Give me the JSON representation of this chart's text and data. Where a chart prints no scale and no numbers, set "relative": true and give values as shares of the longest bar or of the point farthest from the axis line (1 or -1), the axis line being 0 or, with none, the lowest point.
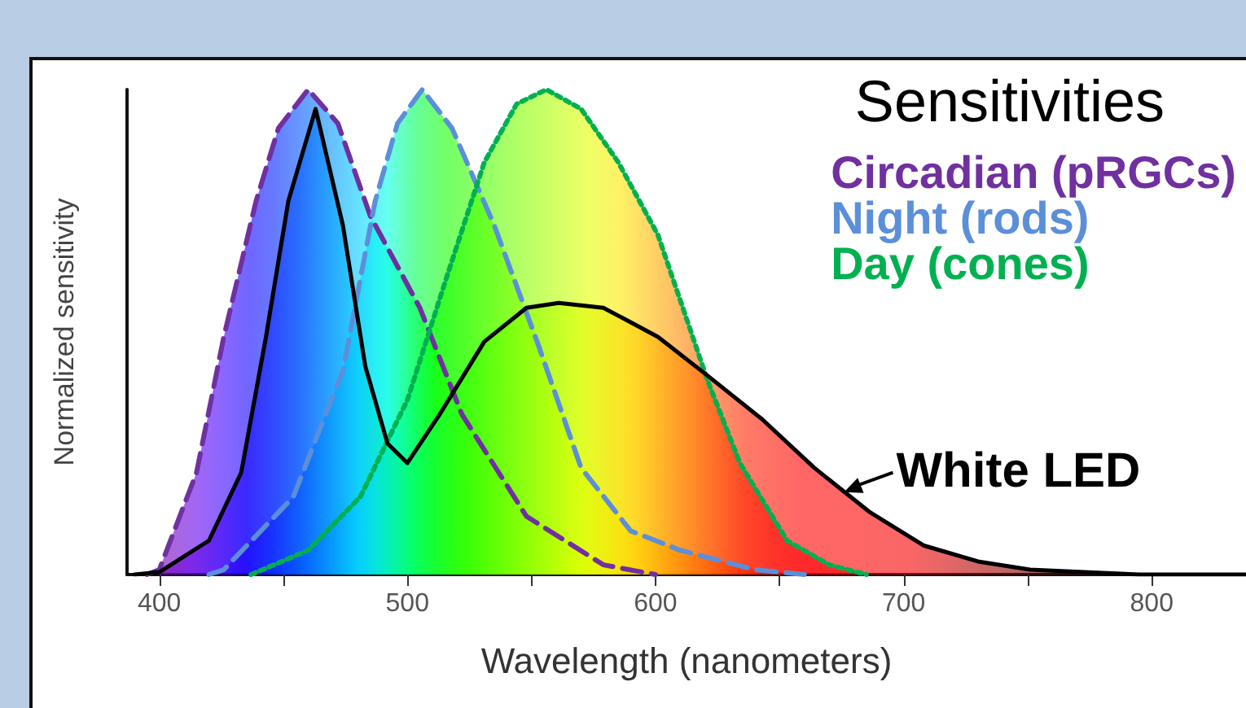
{
  "chart_data": {
    "type": "area",
    "relative": true,
    "xlabel": "Wavelength (nanometers)",
    "ylabel": "Normalized sensitivity",
    "legend_title": "Sensitivities",
    "legend": "top right",
    "grid": false,
    "marker": "none",
    "xlim": [
      387,
      838
    ],
    "xticks": [
      400,
      {
        "value": 450,
        "label": null
      },
      500,
      {
        "value": 550,
        "label": null
      },
      600,
      {
        "value": 650,
        "label": null
      },
      700,
      {
        "value": 750,
        "label": null
      },
      800
    ],
    "series": [
      {
        "name": "Circadian (pRGCs)",
        "color": "#7030a0",
        "line_style": "dashed",
        "x": [
          395,
          400,
          415,
          426,
          439,
          448,
          460,
          472,
          485,
          505,
          522,
          548,
          579,
          600
        ],
        "values": [
          0,
          0.01,
          0.21,
          0.49,
          0.77,
          0.92,
          1,
          0.93,
          0.74,
          0.55,
          0.33,
          0.12,
          0.02,
          0
        ]
      },
      {
        "name": "Night (rods)",
        "color": "#5b8fd9",
        "line_style": "dashed",
        "x": [
          420,
          426,
          454,
          474,
          487,
          496,
          506,
          518,
          535,
          553,
          570,
          590,
          610,
          640,
          660
        ],
        "values": [
          0,
          0.01,
          0.16,
          0.42,
          0.77,
          0.93,
          1,
          0.92,
          0.72,
          0.47,
          0.22,
          0.09,
          0.05,
          0.01,
          0
        ]
      },
      {
        "name": "Day (cones)",
        "color": "#00b050",
        "line_style": "dotted",
        "x": [
          437,
          460,
          481,
          500,
          515,
          531,
          544,
          556,
          570,
          585,
          601,
          621,
          634,
          653,
          670,
          685
        ],
        "values": [
          0,
          0.05,
          0.16,
          0.36,
          0.6,
          0.85,
          0.97,
          1,
          0.96,
          0.85,
          0.7,
          0.4,
          0.23,
          0.07,
          0.02,
          0
        ]
      },
      {
        "color": "#000000",
        "line_style": "solid",
        "x": [
          390,
          400,
          420,
          433,
          443,
          452,
          463,
          474,
          483,
          492,
          500,
          513,
          531,
          548,
          561,
          579,
          601,
          621,
          643,
          664,
          686,
          708,
          730,
          751,
          795,
          838
        ],
        "values": [
          0,
          0.005,
          0.07,
          0.21,
          0.49,
          0.77,
          0.96,
          0.72,
          0.43,
          0.27,
          0.23,
          0.33,
          0.48,
          0.55,
          0.56,
          0.55,
          0.49,
          0.41,
          0.32,
          0.22,
          0.13,
          0.06,
          0.027,
          0.01,
          0,
          0
        ]
      }
    ],
    "annotations": [
      {
        "text": "White LED",
        "x": 676,
        "y": 0.17
      }
    ]
  }
}
